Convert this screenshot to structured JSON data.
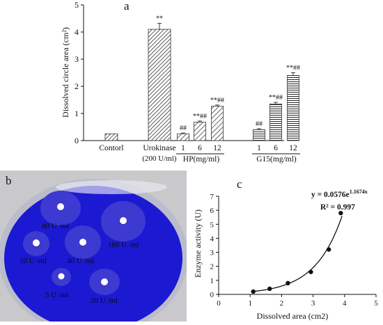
{
  "panels": {
    "a": "a",
    "b": "b",
    "c": "c"
  },
  "chart_data": [
    {
      "type": "bar",
      "panel": "a",
      "ylabel": "Dissolved circle area (cm²)",
      "ylim": [
        0,
        5
      ],
      "yticks": [
        0,
        1,
        2,
        3,
        4,
        5
      ],
      "categories": [
        "Contorl",
        "Urokinase",
        "1",
        "6",
        "12",
        "1",
        "6",
        "12"
      ],
      "values": [
        0.25,
        4.1,
        0.25,
        0.68,
        1.27,
        0.4,
        1.35,
        2.4
      ],
      "errors": [
        0.0,
        0.22,
        0.03,
        0.04,
        0.04,
        0.04,
        0.06,
        0.1
      ],
      "annotations": [
        "",
        "**",
        "##",
        "**##",
        "**##",
        "##",
        "**##",
        "**##"
      ],
      "fills": [
        "dense-diagonal",
        "dense-diagonal",
        "diagonal",
        "diagonal",
        "diagonal",
        "horizontal",
        "horizontal",
        "horizontal"
      ],
      "group_labels": [
        {
          "label": "Contorl",
          "sub": ""
        },
        {
          "label": "Urokinase",
          "sub": "(200 U/ml)"
        },
        {
          "label": "HP(mg/ml)",
          "sub": ""
        },
        {
          "label": "G15(mg/ml)",
          "sub": ""
        }
      ],
      "grid": false
    },
    {
      "type": "scatter",
      "panel": "c",
      "xlabel": "Dissolved area (cm2)",
      "ylabel": "Enzyme activity (U)",
      "xlim": [
        0,
        5
      ],
      "ylim": [
        0,
        7
      ],
      "xticks": [
        0,
        1,
        2,
        3,
        4,
        5
      ],
      "yticks": [
        0,
        1,
        2,
        3,
        4,
        5,
        6,
        7
      ],
      "points": [
        {
          "x": 1.1,
          "y": 0.2
        },
        {
          "x": 1.62,
          "y": 0.4
        },
        {
          "x": 2.2,
          "y": 0.8
        },
        {
          "x": 2.93,
          "y": 1.6
        },
        {
          "x": 3.5,
          "y": 3.2
        },
        {
          "x": 3.88,
          "y": 5.8
        }
      ],
      "fit": {
        "a": 0.0576,
        "b": 1.1674,
        "x_from": 1.05,
        "x_to": 3.92
      },
      "equation": {
        "prefix": "y = 0.0576e",
        "exponent": "1.1674x"
      },
      "r2": "R² = 0.997",
      "grid": false
    }
  ],
  "plate": {
    "labels": [
      "80 U /ml",
      "160 U /ml",
      "10 U /ml",
      "40 U /ml",
      "5 U /ml",
      "20 U /ml"
    ],
    "colors": {
      "dish": "#1c19d3",
      "halo": "#3c3ad0",
      "well": "#ffffff",
      "background": "#c9c9cc"
    }
  }
}
